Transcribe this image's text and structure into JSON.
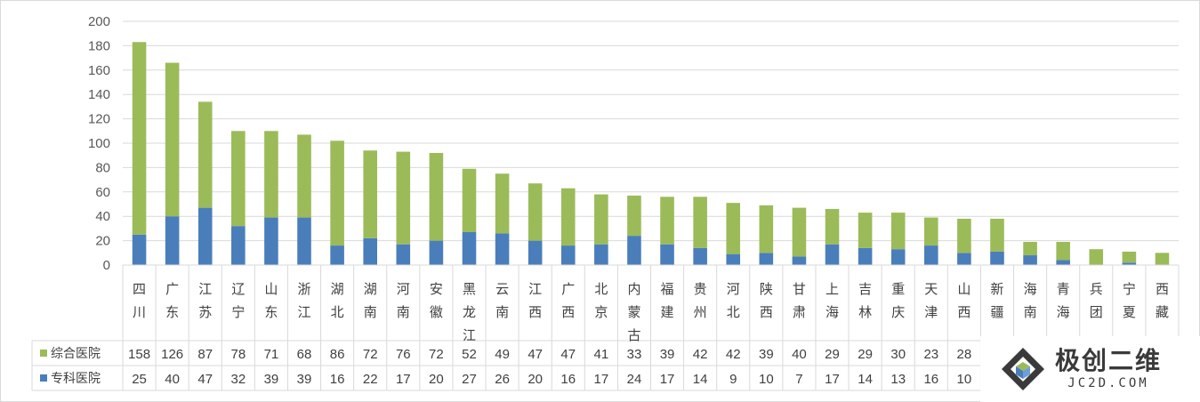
{
  "chart_data": {
    "type": "bar",
    "stacked": true,
    "title": "",
    "xlabel": "",
    "ylabel": "",
    "ylim": [
      0,
      200
    ],
    "yticks": [
      0,
      20,
      40,
      60,
      80,
      100,
      120,
      140,
      160,
      180,
      200
    ],
    "grid": true,
    "legend": "in-data-table",
    "data_table": true,
    "categories": [
      "四川",
      "广东",
      "江苏",
      "辽宁",
      "山东",
      "浙江",
      "湖北",
      "湖南",
      "河南",
      "安徽",
      "黑龙江",
      "云南",
      "江西",
      "广西",
      "北京",
      "内蒙古",
      "福建",
      "贵州",
      "河北",
      "陕西",
      "甘肃",
      "上海",
      "吉林",
      "重庆",
      "天津",
      "山西",
      "新疆",
      "海南",
      "青海",
      "兵团",
      "宁夏",
      "西藏"
    ],
    "series": [
      {
        "name": "专科医院",
        "color": "#4a7ebb",
        "values": [
          25,
          40,
          47,
          32,
          39,
          39,
          16,
          22,
          17,
          20,
          27,
          26,
          20,
          16,
          17,
          24,
          17,
          14,
          9,
          10,
          7,
          17,
          14,
          13,
          16,
          10,
          11,
          8,
          4,
          0,
          2,
          0
        ]
      },
      {
        "name": "综合医院",
        "color": "#9bbb59",
        "values": [
          158,
          126,
          87,
          78,
          71,
          68,
          86,
          72,
          76,
          72,
          52,
          49,
          47,
          47,
          41,
          33,
          39,
          42,
          42,
          39,
          40,
          29,
          29,
          30,
          23,
          28,
          27,
          11,
          15,
          13,
          9,
          10
        ]
      }
    ]
  },
  "watermark": {
    "brand": "极创二维",
    "site": "JC2D.COM"
  }
}
